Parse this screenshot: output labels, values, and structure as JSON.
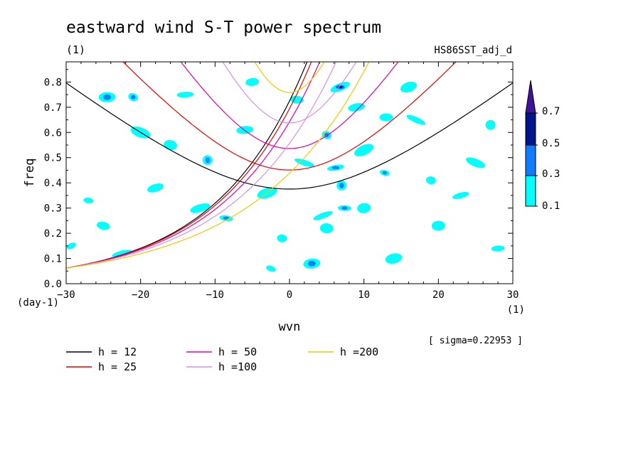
{
  "chart_data": {
    "type": "contour",
    "title": "eastward wind S-T power spectrum",
    "subtitle_left": "(1)",
    "subtitle_right": "HS86SST_adj_d",
    "xlabel": "wvn",
    "xunit": "(1)",
    "ylabel": "freq",
    "yunit": "(day-1)",
    "sigma_note": "[ sigma=0.22953 ]",
    "xlim": [
      -30,
      30
    ],
    "ylim": [
      0,
      0.88
    ],
    "x_ticks": [
      -30,
      -20,
      -10,
      0,
      10,
      20,
      30
    ],
    "x_tick_labels": [
      "−30",
      "−20",
      "−10",
      "0",
      "10",
      "20",
      "30"
    ],
    "y_ticks": [
      0,
      0.1,
      0.2,
      0.3,
      0.4,
      0.5,
      0.6,
      0.7,
      0.8
    ],
    "y_tick_labels": [
      "0.0",
      "0.1",
      "0.2",
      "0.3",
      "0.4",
      "0.5",
      "0.6",
      "0.7",
      "0.8"
    ],
    "colorbar": {
      "levels": [
        0.1,
        0.3,
        0.5,
        0.7
      ],
      "labels": [
        "0.1",
        "0.3",
        "0.5",
        "0.7"
      ],
      "colors": [
        "#00ffff",
        "#0f7bff",
        "#00148c",
        "#40149a"
      ]
    },
    "dispersion_curves": [
      {
        "label": "h = 12",
        "color": "#000000",
        "h": 12
      },
      {
        "label": "h = 25",
        "color": "#e60000",
        "h": 25
      },
      {
        "label": "h = 50",
        "color": "#dd00aa",
        "h": 50
      },
      {
        "label": "h =100",
        "color": "#d890e0",
        "h": 100
      },
      {
        "label": "h =200",
        "color": "#f0c800",
        "h": 200
      }
    ],
    "blobs": [
      {
        "x": -29.3,
        "y": 0.15,
        "v": 0.2
      },
      {
        "x": -25,
        "y": 0.23,
        "v": 0.2
      },
      {
        "x": -24.5,
        "y": 0.74,
        "v": 0.35
      },
      {
        "x": -22.5,
        "y": 0.12,
        "v": 0.2
      },
      {
        "x": -21,
        "y": 0.74,
        "v": 0.35
      },
      {
        "x": -16,
        "y": 0.55,
        "v": 0.2
      },
      {
        "x": -14,
        "y": 0.75,
        "v": 0.2
      },
      {
        "x": -12,
        "y": 0.3,
        "v": 0.2
      },
      {
        "x": -11,
        "y": 0.49,
        "v": 0.3
      },
      {
        "x": -8.5,
        "y": 0.26,
        "v": 0.33
      },
      {
        "x": -6,
        "y": 0.61,
        "v": 0.2
      },
      {
        "x": -3,
        "y": 0.36,
        "v": 0.2
      },
      {
        "x": -2.5,
        "y": 0.06,
        "v": 0.2
      },
      {
        "x": 1,
        "y": 0.73,
        "v": 0.2
      },
      {
        "x": 3,
        "y": 0.08,
        "v": 0.35
      },
      {
        "x": 4.5,
        "y": 0.27,
        "v": 0.2
      },
      {
        "x": 5,
        "y": 0.59,
        "v": 0.33
      },
      {
        "x": 5,
        "y": 0.22,
        "v": 0.2
      },
      {
        "x": 6.2,
        "y": 0.46,
        "v": 0.35
      },
      {
        "x": 6.8,
        "y": 0.78,
        "v": 0.45
      },
      {
        "x": 7,
        "y": 0.39,
        "v": 0.35
      },
      {
        "x": 7.4,
        "y": 0.3,
        "v": 0.33
      },
      {
        "x": 9,
        "y": 0.7,
        "v": 0.2
      },
      {
        "x": 10,
        "y": 0.53,
        "v": 0.2
      },
      {
        "x": 12.8,
        "y": 0.44,
        "v": 0.35
      },
      {
        "x": 13,
        "y": 0.66,
        "v": 0.2
      },
      {
        "x": 14,
        "y": 0.1,
        "v": 0.2
      },
      {
        "x": 17,
        "y": 0.65,
        "v": 0.2
      },
      {
        "x": 19,
        "y": 0.41,
        "v": 0.2
      },
      {
        "x": 20,
        "y": 0.23,
        "v": 0.2
      },
      {
        "x": 23,
        "y": 0.35,
        "v": 0.2
      },
      {
        "x": 25,
        "y": 0.48,
        "v": 0.2
      },
      {
        "x": 27,
        "y": 0.63,
        "v": 0.2
      },
      {
        "x": 28,
        "y": 0.14,
        "v": 0.2
      },
      {
        "x": -18,
        "y": 0.38,
        "v": 0.2
      },
      {
        "x": -20,
        "y": 0.6,
        "v": 0.2
      },
      {
        "x": -27,
        "y": 0.33,
        "v": 0.2
      },
      {
        "x": -5,
        "y": 0.8,
        "v": 0.2
      },
      {
        "x": 16,
        "y": 0.78,
        "v": 0.2
      },
      {
        "x": 2,
        "y": 0.48,
        "v": 0.2
      },
      {
        "x": -1,
        "y": 0.18,
        "v": 0.2
      },
      {
        "x": 10,
        "y": 0.3,
        "v": 0.2
      }
    ]
  }
}
